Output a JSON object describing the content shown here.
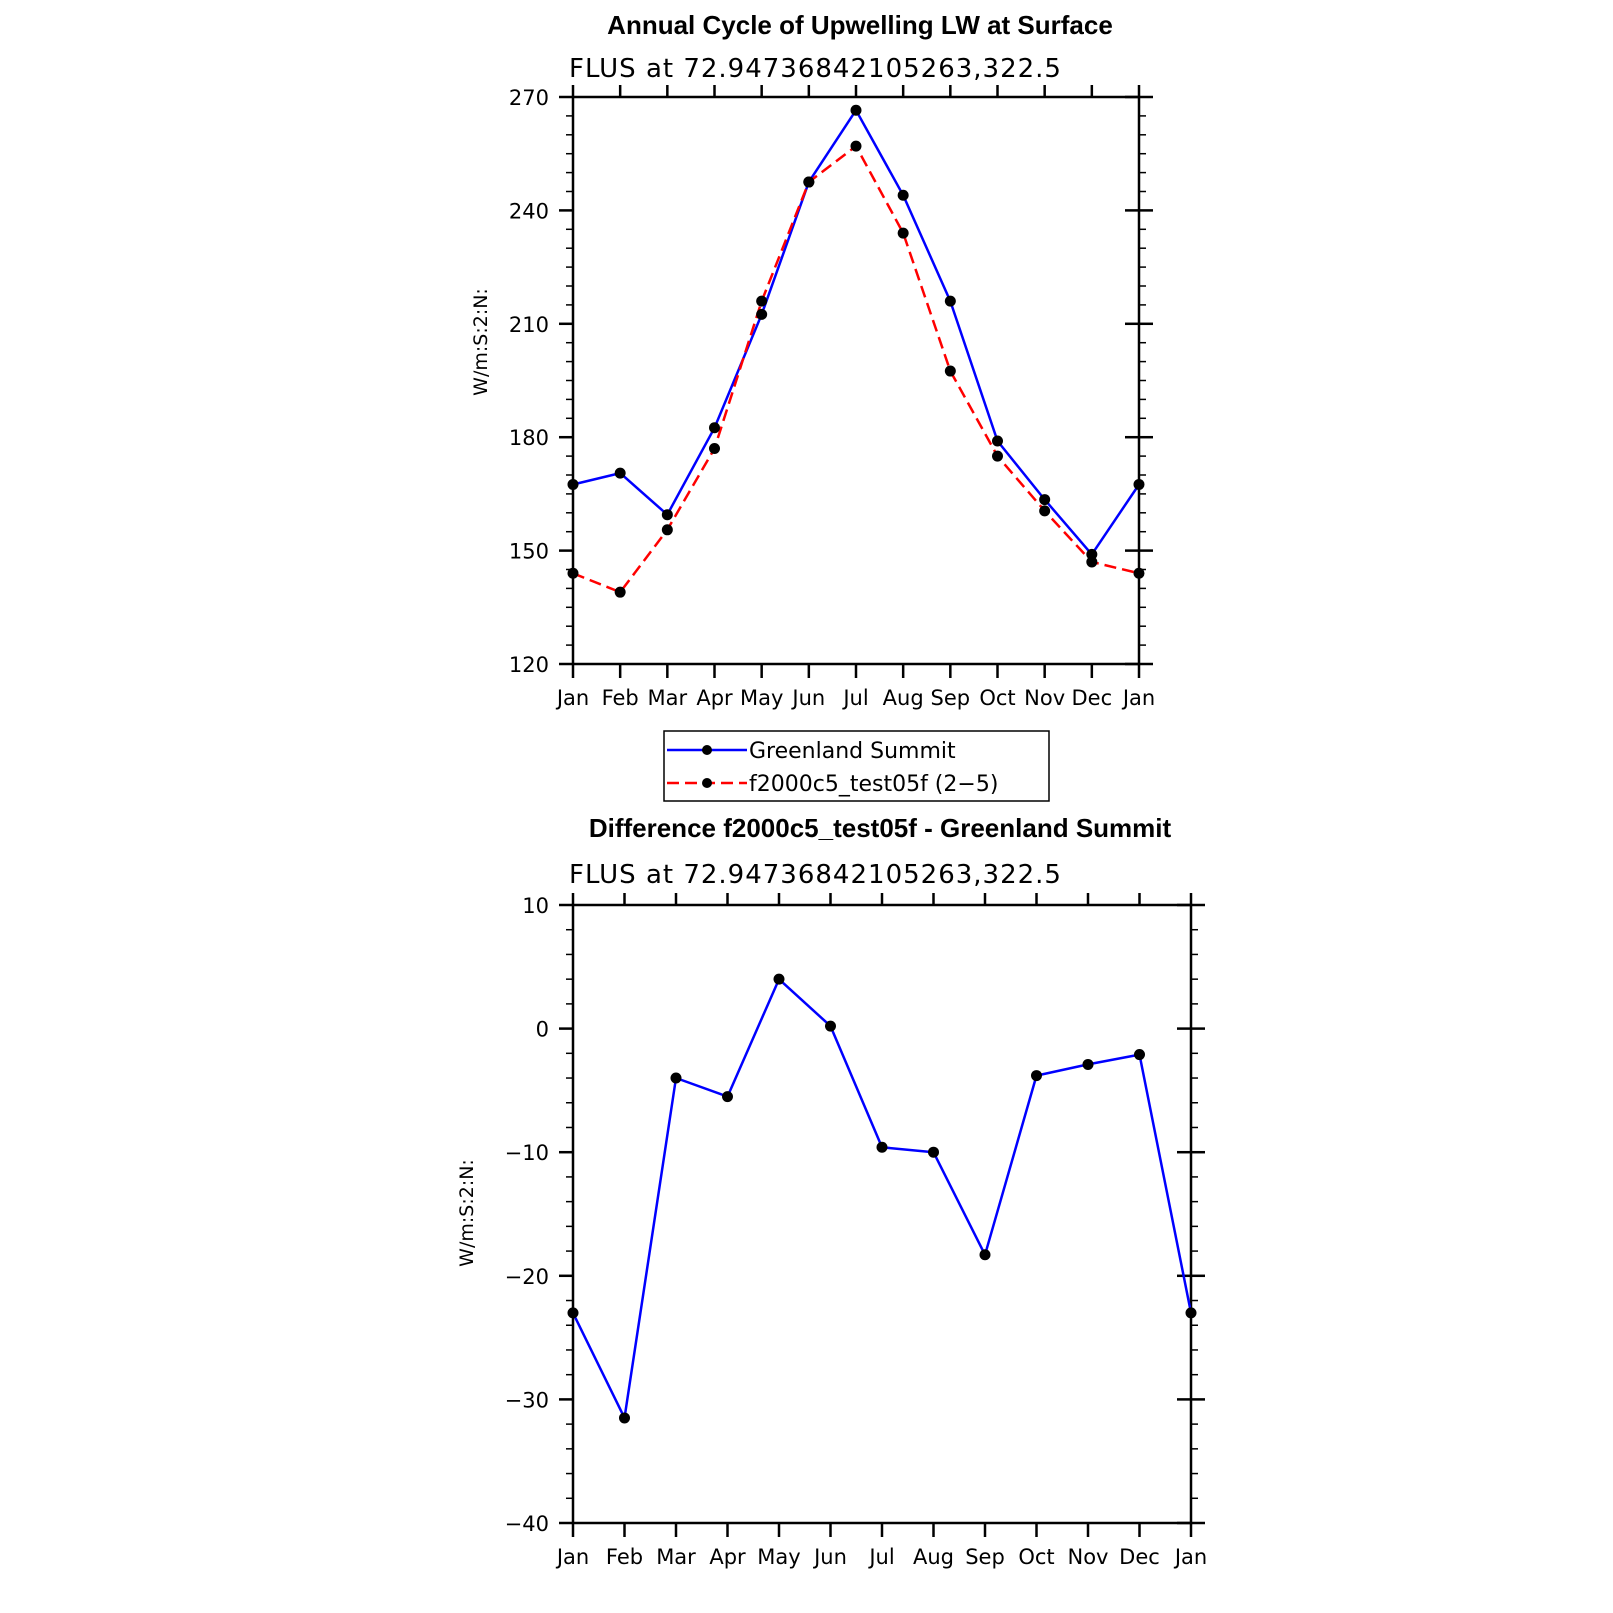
{
  "chart_data": [
    {
      "type": "line",
      "title": "Annual Cycle of Upwelling LW at Surface",
      "subtitle": "FLUS at 72.94736842105263,322.5",
      "ylabel": "W/m:S:2:N:",
      "ylim": [
        120,
        270
      ],
      "yticks": [
        "120",
        "150",
        "180",
        "210",
        "240",
        "270"
      ],
      "categories": [
        "Jan",
        "Feb",
        "Mar",
        "Apr",
        "May",
        "Jun",
        "Jul",
        "Aug",
        "Sep",
        "Oct",
        "Nov",
        "Dec",
        "Jan"
      ],
      "grid": false,
      "legend_position": "below",
      "series": [
        {
          "name": "Greenland Summit",
          "color": "#0000ff",
          "dash": "solid",
          "marker": "filled-circle",
          "values": [
            167.5,
            170.5,
            159.5,
            182.5,
            212.5,
            247.5,
            266.5,
            244,
            216,
            179,
            163.5,
            149,
            167.5
          ]
        },
        {
          "name": "f2000c5_test05f (2−5)",
          "color": "#ff0000",
          "dash": "dashed",
          "marker": "filled-circle",
          "values": [
            144,
            139,
            155.5,
            177,
            216,
            247.5,
            257,
            234,
            197.5,
            175,
            160.5,
            147,
            144
          ]
        }
      ]
    },
    {
      "type": "line",
      "title": "Difference f2000c5_test05f - Greenland Summit",
      "subtitle": "FLUS at 72.94736842105263,322.5",
      "ylabel": "W/m:S:2:N:",
      "ylim": [
        -40,
        10
      ],
      "yticks": [
        "−40",
        "−30",
        "−20",
        "−10",
        "0",
        "10"
      ],
      "categories": [
        "Jan",
        "Feb",
        "Mar",
        "Apr",
        "May",
        "Jun",
        "Jul",
        "Aug",
        "Sep",
        "Oct",
        "Nov",
        "Dec",
        "Jan"
      ],
      "grid": false,
      "series": [
        {
          "name": "",
          "color": "#0000ff",
          "dash": "solid",
          "marker": "filled-circle",
          "values": [
            -23,
            -31.5,
            -4,
            -5.5,
            4,
            0.2,
            -9.6,
            -10,
            -18.3,
            -3.8,
            -2.9,
            -2.1,
            -23
          ]
        }
      ]
    }
  ]
}
